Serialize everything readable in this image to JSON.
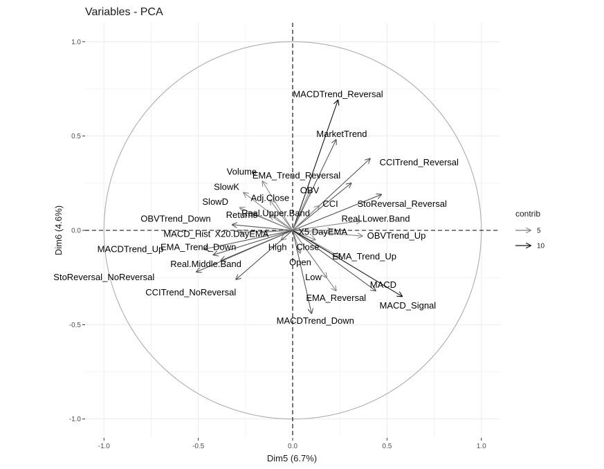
{
  "chart_data": {
    "type": "scatter",
    "title": "Variables - PCA",
    "xlabel": "Dim5 (6.7%)",
    "ylabel": "Dim6 (4.6%)",
    "xlim": [
      -1.1,
      1.1
    ],
    "ylim": [
      -1.1,
      1.1
    ],
    "x_ticks": [
      -1.0,
      -0.5,
      0.0,
      0.5,
      1.0
    ],
    "x_tick_labels": [
      "-1.0",
      "-0.5",
      "0.0",
      "0.5",
      "1.0"
    ],
    "y_ticks": [
      -1.0,
      -0.5,
      0.0,
      0.5,
      1.0
    ],
    "y_tick_labels": [
      "-1.0",
      "-0.5",
      "0.0",
      "0.5",
      "1.0"
    ],
    "grid": true,
    "legend": {
      "title": "contrib",
      "position": "right",
      "entries": [
        {
          "label": "5",
          "color": "#7a7a7a"
        },
        {
          "label": "10",
          "color": "#111111"
        }
      ]
    },
    "variables": [
      {
        "name": "MACDTrend_Reversal",
        "x": 0.24,
        "y": 0.69,
        "contrib": 11,
        "label_x": 0.24,
        "label_y": 0.72
      },
      {
        "name": "MarketTrend",
        "x": 0.23,
        "y": 0.48,
        "contrib": 7,
        "label_x": 0.26,
        "label_y": 0.51
      },
      {
        "name": "CCITrend_Reversal",
        "x": 0.41,
        "y": 0.38,
        "contrib": 6,
        "label_x": 0.67,
        "label_y": 0.36
      },
      {
        "name": "EMA_Trend_Reversal",
        "x": 0.31,
        "y": 0.25,
        "contrib": 6,
        "label_x": 0.02,
        "label_y": 0.29
      },
      {
        "name": "OBV",
        "x": 0.09,
        "y": 0.21,
        "contrib": 5,
        "label_x": 0.09,
        "label_y": 0.21
      },
      {
        "name": "StoReversal_Reversal",
        "x": 0.47,
        "y": 0.19,
        "contrib": 7,
        "label_x": 0.58,
        "label_y": 0.14
      },
      {
        "name": "CCI",
        "x": 0.14,
        "y": 0.13,
        "contrib": 5,
        "label_x": 0.2,
        "label_y": 0.14
      },
      {
        "name": "Real.Lower.Band",
        "x": 0.36,
        "y": 0.05,
        "contrib": 5,
        "label_x": 0.44,
        "label_y": 0.06
      },
      {
        "name": "OBVTrend_Up",
        "x": 0.37,
        "y": -0.03,
        "contrib": 5,
        "label_x": 0.55,
        "label_y": -0.03
      },
      {
        "name": "X5.DayEMA",
        "x": 0.21,
        "y": 0.0,
        "contrib": 3,
        "label_x": 0.16,
        "label_y": -0.01
      },
      {
        "name": "Close",
        "x": 0.12,
        "y": -0.05,
        "contrib": 3,
        "label_x": 0.08,
        "label_y": -0.09
      },
      {
        "name": "EMA_Trend_Up",
        "x": 0.25,
        "y": -0.14,
        "contrib": 4,
        "label_x": 0.38,
        "label_y": -0.14
      },
      {
        "name": "Open",
        "x": 0.04,
        "y": -0.12,
        "contrib": 3,
        "label_x": 0.04,
        "label_y": -0.17
      },
      {
        "name": "Low",
        "x": 0.18,
        "y": -0.25,
        "contrib": 4,
        "label_x": 0.11,
        "label_y": -0.25
      },
      {
        "name": "MACD",
        "x": 0.44,
        "y": -0.32,
        "contrib": 8,
        "label_x": 0.48,
        "label_y": -0.29
      },
      {
        "name": "EMA_Reversal",
        "x": 0.23,
        "y": -0.32,
        "contrib": 5,
        "label_x": 0.23,
        "label_y": -0.36
      },
      {
        "name": "MACD_Signal",
        "x": 0.58,
        "y": -0.35,
        "contrib": 11,
        "label_x": 0.61,
        "label_y": -0.4
      },
      {
        "name": "MACDTrend_Down",
        "x": 0.1,
        "y": -0.44,
        "contrib": 6,
        "label_x": 0.12,
        "label_y": -0.48
      },
      {
        "name": "Volume",
        "x": -0.16,
        "y": 0.26,
        "contrib": 5,
        "label_x": -0.27,
        "label_y": 0.31
      },
      {
        "name": "SlowK",
        "x": -0.26,
        "y": 0.2,
        "contrib": 5,
        "label_x": -0.35,
        "label_y": 0.23
      },
      {
        "name": "Adj.Close",
        "x": -0.12,
        "y": 0.16,
        "contrib": 4,
        "label_x": -0.12,
        "label_y": 0.17
      },
      {
        "name": "SlowD",
        "x": -0.28,
        "y": 0.12,
        "contrib": 5,
        "label_x": -0.41,
        "label_y": 0.15
      },
      {
        "name": "Real.Upper.Band",
        "x": -0.12,
        "y": 0.08,
        "contrib": 4,
        "label_x": -0.09,
        "label_y": 0.09
      },
      {
        "name": "Returns",
        "x": -0.22,
        "y": 0.09,
        "contrib": 4,
        "label_x": -0.27,
        "label_y": 0.08
      },
      {
        "name": "OBVTrend_Down",
        "x": -0.32,
        "y": 0.03,
        "contrib": 6,
        "label_x": -0.62,
        "label_y": 0.06
      },
      {
        "name": "MACD_Hist",
        "x": -0.28,
        "y": -0.01,
        "contrib": 4,
        "label_x": -0.56,
        "label_y": -0.02
      },
      {
        "name": "X20.DayEMA",
        "x": -0.16,
        "y": -0.01,
        "contrib": 4,
        "label_x": -0.27,
        "label_y": -0.02
      },
      {
        "name": "MACDTrend_Up",
        "x": -0.47,
        "y": -0.1,
        "contrib": 8,
        "label_x": -0.86,
        "label_y": -0.1
      },
      {
        "name": "EMA_Trend_Down",
        "x": -0.42,
        "y": -0.13,
        "contrib": 6,
        "label_x": -0.5,
        "label_y": -0.09
      },
      {
        "name": "High",
        "x": -0.06,
        "y": -0.05,
        "contrib": 3,
        "label_x": -0.08,
        "label_y": -0.09
      },
      {
        "name": "Real.Middle.Band",
        "x": -0.38,
        "y": -0.16,
        "contrib": 6,
        "label_x": -0.46,
        "label_y": -0.18
      },
      {
        "name": "StoReversal_NoReversal",
        "x": -0.51,
        "y": -0.22,
        "contrib": 8,
        "label_x": -1.0,
        "label_y": -0.25
      },
      {
        "name": "CCITrend_NoReversal",
        "x": -0.3,
        "y": -0.26,
        "contrib": 6,
        "label_x": -0.54,
        "label_y": -0.33
      }
    ]
  }
}
